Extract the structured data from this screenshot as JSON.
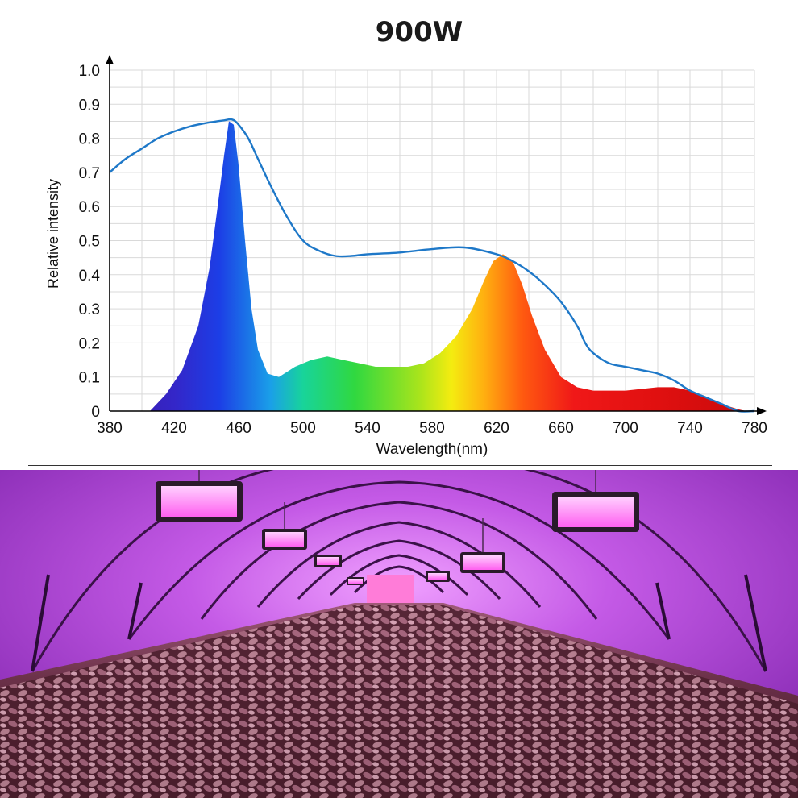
{
  "page": {
    "title": "900W"
  },
  "chart_data": {
    "type": "area",
    "title": "900W",
    "xlabel": "Wavelength(nm)",
    "ylabel": "Relative intensity",
    "xlim": [
      380,
      780
    ],
    "ylim": [
      0,
      1.0
    ],
    "x_ticks": [
      "380",
      "420",
      "460",
      "500",
      "540",
      "580",
      "620",
      "660",
      "700",
      "740",
      "780"
    ],
    "y_ticks": [
      "0",
      "0.1",
      "0.2",
      "0.3",
      "0.4",
      "0.5",
      "0.6",
      "0.7",
      "0.8",
      "0.9",
      "1.0"
    ],
    "grid": true,
    "series": [
      {
        "style": "filled-spectrum",
        "x": [
          405,
          415,
          425,
          435,
          442,
          447,
          451,
          454,
          457,
          460,
          464,
          468,
          472,
          478,
          485,
          495,
          505,
          515,
          525,
          535,
          545,
          555,
          565,
          575,
          585,
          595,
          605,
          612,
          618,
          624,
          630,
          636,
          642,
          650,
          660,
          670,
          680,
          690,
          700,
          710,
          720,
          730,
          740,
          750,
          760,
          770,
          775
        ],
        "y": [
          0.0,
          0.05,
          0.12,
          0.25,
          0.42,
          0.6,
          0.75,
          0.85,
          0.84,
          0.72,
          0.5,
          0.3,
          0.18,
          0.11,
          0.1,
          0.13,
          0.15,
          0.16,
          0.15,
          0.14,
          0.13,
          0.13,
          0.13,
          0.14,
          0.17,
          0.22,
          0.3,
          0.38,
          0.44,
          0.46,
          0.44,
          0.37,
          0.28,
          0.18,
          0.1,
          0.07,
          0.06,
          0.06,
          0.06,
          0.065,
          0.07,
          0.07,
          0.06,
          0.04,
          0.02,
          0.005,
          0.0
        ]
      },
      {
        "style": "line",
        "color": "#1e78c8",
        "x": [
          380,
          390,
          400,
          410,
          420,
          430,
          440,
          450,
          456,
          460,
          466,
          472,
          480,
          490,
          500,
          510,
          520,
          530,
          540,
          560,
          580,
          600,
          620,
          630,
          640,
          650,
          660,
          670,
          675,
          680,
          690,
          700,
          710,
          720,
          730,
          740,
          750,
          760,
          770,
          780
        ],
        "y": [
          0.7,
          0.74,
          0.77,
          0.8,
          0.82,
          0.835,
          0.845,
          0.852,
          0.855,
          0.84,
          0.8,
          0.74,
          0.66,
          0.57,
          0.5,
          0.47,
          0.455,
          0.455,
          0.46,
          0.465,
          0.475,
          0.48,
          0.46,
          0.44,
          0.41,
          0.37,
          0.32,
          0.25,
          0.2,
          0.17,
          0.14,
          0.13,
          0.12,
          0.11,
          0.09,
          0.06,
          0.04,
          0.02,
          0.0,
          0.0
        ]
      }
    ]
  },
  "photo": {
    "wall_color": "#b04ad8",
    "floor_color": "#5a2a3a",
    "light_color": "#ff9cff"
  }
}
